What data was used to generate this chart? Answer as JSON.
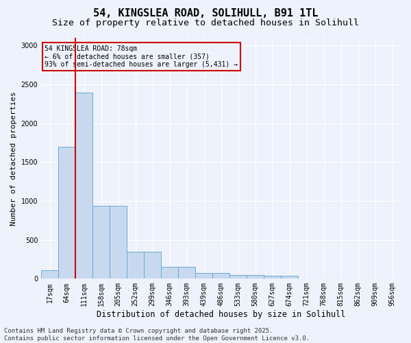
{
  "title": "54, KINGSLEA ROAD, SOLIHULL, B91 1TL",
  "subtitle": "Size of property relative to detached houses in Solihull",
  "xlabel": "Distribution of detached houses by size in Solihull",
  "ylabel": "Number of detached properties",
  "categories": [
    "17sqm",
    "64sqm",
    "111sqm",
    "158sqm",
    "205sqm",
    "252sqm",
    "299sqm",
    "346sqm",
    "393sqm",
    "439sqm",
    "486sqm",
    "533sqm",
    "580sqm",
    "627sqm",
    "674sqm",
    "721sqm",
    "768sqm",
    "815sqm",
    "862sqm",
    "909sqm",
    "956sqm"
  ],
  "bar_values": [
    110,
    1700,
    2390,
    940,
    940,
    350,
    350,
    150,
    150,
    70,
    70,
    50,
    50,
    40,
    40,
    5,
    5,
    2,
    2,
    1,
    1
  ],
  "bar_color": "#c8d9ef",
  "bar_edgecolor": "#6aaad4",
  "vline_x_index": 1.5,
  "vline_color": "#cc0000",
  "ylim": [
    0,
    3100
  ],
  "yticks": [
    0,
    500,
    1000,
    1500,
    2000,
    2500,
    3000
  ],
  "annotation_title": "54 KINGSLEA ROAD: 78sqm",
  "annotation_line1": "← 6% of detached houses are smaller (357)",
  "annotation_line2": "93% of semi-detached houses are larger (5,431) →",
  "annotation_box_color": "#cc0000",
  "footer_line1": "Contains HM Land Registry data © Crown copyright and database right 2025.",
  "footer_line2": "Contains public sector information licensed under the Open Government Licence v3.0.",
  "bg_color": "#eef2fc",
  "grid_color": "#ffffff",
  "title_fontsize": 11,
  "subtitle_fontsize": 9.5,
  "ylabel_fontsize": 8,
  "xlabel_fontsize": 8.5,
  "tick_fontsize": 7,
  "ann_fontsize": 7,
  "footer_fontsize": 6.5
}
